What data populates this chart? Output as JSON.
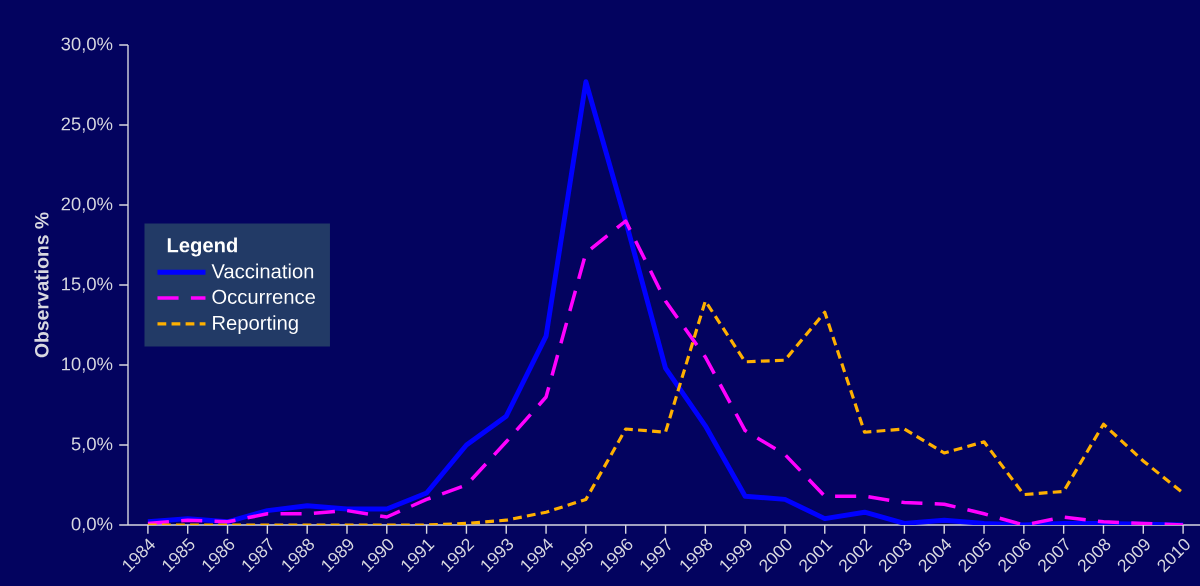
{
  "chart_data": {
    "type": "line",
    "ylabel": "Observations %",
    "legend_title": "Legend",
    "legend": "left",
    "grid": false,
    "marker": "none",
    "categories": [
      "1984",
      "1985",
      "1986",
      "1987",
      "1988",
      "1989",
      "1990",
      "1991",
      "1992",
      "1993",
      "1994",
      "1995",
      "1996",
      "1997",
      "1998",
      "1999",
      "2000",
      "2001",
      "2002",
      "2003",
      "2004",
      "2005",
      "2006",
      "2007",
      "2008",
      "2009",
      "2010"
    ],
    "ylim": [
      0,
      30
    ],
    "yticks": [
      {
        "value": 0,
        "label": "0,0%"
      },
      {
        "value": 5,
        "label": "5,0%"
      },
      {
        "value": 10,
        "label": "10,0%"
      },
      {
        "value": 15,
        "label": "15,0%"
      },
      {
        "value": 20,
        "label": "20,0%"
      },
      {
        "value": 25,
        "label": "25,0%"
      },
      {
        "value": 30,
        "label": "30,0%"
      }
    ],
    "series": [
      {
        "name": "Vaccination",
        "color": "#0000ff",
        "line_style": "solid",
        "values": [
          0.2,
          0.4,
          0.2,
          0.9,
          1.2,
          1.0,
          1.0,
          2.0,
          5.0,
          6.8,
          11.8,
          27.7,
          19.0,
          9.8,
          6.2,
          1.8,
          1.6,
          0.4,
          0.8,
          0.1,
          0.3,
          0.1,
          0.0,
          0.1,
          0.1,
          0.05,
          0.0
        ]
      },
      {
        "name": "Occurrence",
        "color": "#ff00ff",
        "line_style": "dashed",
        "values": [
          0.1,
          0.3,
          0.2,
          0.7,
          0.7,
          0.9,
          0.5,
          1.6,
          2.5,
          5.2,
          8.0,
          17.0,
          19.0,
          14.0,
          10.5,
          5.9,
          4.4,
          1.8,
          1.8,
          1.4,
          1.3,
          0.7,
          0.0,
          0.5,
          0.2,
          0.1,
          0.0
        ]
      },
      {
        "name": "Reporting",
        "color": "#ffb000",
        "line_style": "dotted",
        "values": [
          0.0,
          0.0,
          0.0,
          0.0,
          0.0,
          0.0,
          0.0,
          0.0,
          0.1,
          0.3,
          0.8,
          1.6,
          6.0,
          5.8,
          14.0,
          10.2,
          10.3,
          13.3,
          5.8,
          6.0,
          4.5,
          5.2,
          1.9,
          2.1,
          6.3,
          4.0,
          2.0
        ]
      }
    ]
  }
}
